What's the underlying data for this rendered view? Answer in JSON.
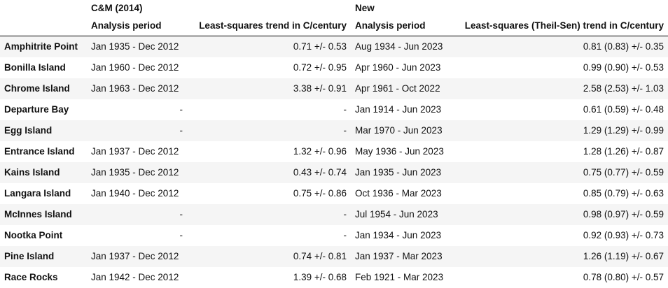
{
  "groups": {
    "cm": "C&M (2014)",
    "new": "New"
  },
  "columns": {
    "station": "",
    "cm_period": "Analysis period",
    "cm_trend": "Least-squares trend in C/century",
    "new_period": "Analysis period",
    "new_trend": "Least-squares (Theil-Sen) trend in C/century"
  },
  "rows": [
    {
      "station": "Amphitrite Point",
      "cm_period": "Jan 1935 - Dec 2012",
      "cm_trend": "0.71 +/- 0.53",
      "new_period": "Aug 1934 - Jun 2023",
      "new_trend": "0.81 (0.83) +/- 0.35"
    },
    {
      "station": "Bonilla Island",
      "cm_period": "Jan 1960 - Dec 2012",
      "cm_trend": "0.72 +/- 0.95",
      "new_period": "Apr 1960 - Jun 2023",
      "new_trend": "0.99 (0.90) +/- 0.53"
    },
    {
      "station": "Chrome Island",
      "cm_period": "Jan 1963 - Dec 2012",
      "cm_trend": "3.38 +/- 0.91",
      "new_period": "Apr 1961 - Oct 2022",
      "new_trend": "2.58 (2.53) +/- 1.03"
    },
    {
      "station": "Departure Bay",
      "cm_period": "-",
      "cm_trend": "-",
      "new_period": "Jan 1914 - Jun 2023",
      "new_trend": "0.61 (0.59) +/- 0.48"
    },
    {
      "station": "Egg Island",
      "cm_period": "-",
      "cm_trend": "-",
      "new_period": "Mar 1970 - Jun 2023",
      "new_trend": "1.29 (1.29) +/- 0.99"
    },
    {
      "station": "Entrance Island",
      "cm_period": "Jan 1937 - Dec 2012",
      "cm_trend": "1.32 +/- 0.96",
      "new_period": "May 1936 - Jun 2023",
      "new_trend": "1.28 (1.26) +/- 0.87"
    },
    {
      "station": "Kains Island",
      "cm_period": "Jan 1935 - Dec 2012",
      "cm_trend": "0.43 +/- 0.74",
      "new_period": "Jan 1935 - Jun 2023",
      "new_trend": "0.75 (0.77) +/- 0.59"
    },
    {
      "station": "Langara Island",
      "cm_period": "Jan 1940 - Dec 2012",
      "cm_trend": "0.75 +/- 0.86",
      "new_period": "Oct 1936 - Mar 2023",
      "new_trend": "0.85 (0.79) +/- 0.63"
    },
    {
      "station": "McInnes Island",
      "cm_period": "-",
      "cm_trend": "-",
      "new_period": "Jul 1954 - Jun 2023",
      "new_trend": "0.98 (0.97) +/- 0.59"
    },
    {
      "station": "Nootka Point",
      "cm_period": "-",
      "cm_trend": "-",
      "new_period": "Jan 1934 - Jun 2023",
      "new_trend": "0.92 (0.93) +/- 0.73"
    },
    {
      "station": "Pine Island",
      "cm_period": "Jan 1937 - Dec 2012",
      "cm_trend": "0.74 +/- 0.81",
      "new_period": "Jan 1937 - Mar 2023",
      "new_trend": "1.26 (1.19) +/- 0.67"
    },
    {
      "station": "Race Rocks",
      "cm_period": "Jan 1942 - Dec 2012",
      "cm_trend": "1.39 +/- 0.68",
      "new_period": "Feb 1921 - Mar 2023",
      "new_trend": "0.78 (0.80) +/- 0.57"
    }
  ]
}
